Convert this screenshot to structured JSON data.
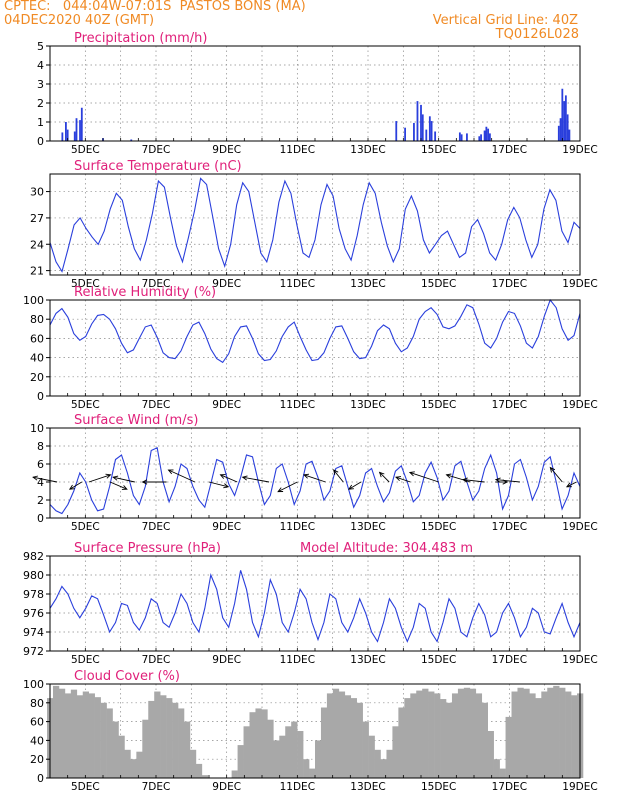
{
  "header": {
    "line1_left": "CPTEC:   044:04W-07:01S  PASTOS BONS (MA)",
    "line2_left": "04DEC2020 40Z (GMT)",
    "line1_right": "Vertical Grid Line: 40Z",
    "line2_right": "TQ0126L028"
  },
  "colors": {
    "header": "#f08a24",
    "panel_title": "#e0207a",
    "series": "#2a3fdc",
    "cloud": "#a8a8a8",
    "wind_arrow": "#000000"
  },
  "shared_x": {
    "tick_labels": [
      "5DEC",
      "7DEC",
      "9DEC",
      "11DEC",
      "13DEC",
      "15DEC",
      "17DEC",
      "19DEC"
    ],
    "days_span": 15
  },
  "chart_data": [
    {
      "type": "bar",
      "title": "Precipitation (mm/h)",
      "yticks": [
        "0",
        "1",
        "2",
        "3",
        "4",
        "5"
      ],
      "ylim": [
        0,
        5
      ],
      "events": [
        {
          "day": 0.35,
          "value": 0.45
        },
        {
          "day": 0.45,
          "value": 1.0
        },
        {
          "day": 0.5,
          "value": 0.6
        },
        {
          "day": 0.7,
          "value": 0.5
        },
        {
          "day": 0.75,
          "value": 1.2
        },
        {
          "day": 0.85,
          "value": 1.1
        },
        {
          "day": 0.9,
          "value": 1.75
        },
        {
          "day": 1.5,
          "value": 0.15
        },
        {
          "day": 2.3,
          "value": 0.08
        },
        {
          "day": 9.8,
          "value": 1.05
        },
        {
          "day": 10.05,
          "value": 0.7
        },
        {
          "day": 10.3,
          "value": 0.95
        },
        {
          "day": 10.4,
          "value": 2.1
        },
        {
          "day": 10.5,
          "value": 1.9
        },
        {
          "day": 10.55,
          "value": 1.4
        },
        {
          "day": 10.65,
          "value": 0.6
        },
        {
          "day": 10.75,
          "value": 1.3
        },
        {
          "day": 10.8,
          "value": 1.05
        },
        {
          "day": 10.9,
          "value": 0.5
        },
        {
          "day": 11.6,
          "value": 0.45
        },
        {
          "day": 11.65,
          "value": 0.35
        },
        {
          "day": 11.8,
          "value": 0.4
        },
        {
          "day": 12.15,
          "value": 0.25
        },
        {
          "day": 12.2,
          "value": 0.35
        },
        {
          "day": 12.3,
          "value": 0.55
        },
        {
          "day": 12.35,
          "value": 0.75
        },
        {
          "day": 12.4,
          "value": 0.65
        },
        {
          "day": 12.45,
          "value": 0.4
        },
        {
          "day": 14.4,
          "value": 0.8
        },
        {
          "day": 14.45,
          "value": 1.2
        },
        {
          "day": 14.5,
          "value": 2.75
        },
        {
          "day": 14.55,
          "value": 2.1
        },
        {
          "day": 14.6,
          "value": 2.4
        },
        {
          "day": 14.65,
          "value": 1.4
        },
        {
          "day": 14.7,
          "value": 0.6
        }
      ]
    },
    {
      "type": "line",
      "title": "Surface Temperature (nC)",
      "yticks": [
        "21",
        "24",
        "27",
        "30"
      ],
      "ylim": [
        20.5,
        32
      ],
      "values": [
        24.2,
        22.0,
        20.9,
        23.5,
        26.2,
        27.0,
        25.8,
        24.8,
        24.0,
        25.5,
        28.0,
        29.8,
        29.0,
        26.0,
        23.5,
        22.2,
        24.5,
        27.5,
        31.2,
        30.5,
        27.0,
        23.8,
        22.0,
        24.8,
        27.8,
        31.5,
        30.8,
        27.2,
        23.5,
        21.5,
        24.0,
        28.5,
        31.0,
        30.0,
        26.5,
        23.0,
        22.0,
        24.5,
        28.8,
        31.2,
        29.8,
        26.2,
        23.0,
        22.5,
        24.5,
        28.5,
        30.8,
        29.5,
        25.8,
        23.5,
        22.2,
        25.0,
        28.5,
        31.0,
        29.8,
        26.5,
        23.8,
        22.0,
        23.5,
        28.0,
        29.5,
        27.8,
        24.5,
        23.0,
        24.0,
        25.0,
        25.5,
        24.0,
        22.5,
        23.0,
        26.0,
        26.8,
        25.2,
        23.0,
        22.2,
        24.0,
        26.8,
        28.2,
        27.0,
        24.5,
        22.5,
        24.0,
        28.0,
        30.2,
        29.0,
        25.5,
        24.2,
        26.5,
        25.8
      ]
    },
    {
      "type": "line",
      "title": "Relative Humidity (%)",
      "yticks": [
        "0",
        "20",
        "40",
        "60",
        "80",
        "100"
      ],
      "ylim": [
        0,
        100
      ],
      "values": [
        74,
        86,
        91,
        82,
        65,
        58,
        62,
        75,
        84,
        85,
        80,
        70,
        55,
        45,
        48,
        60,
        72,
        74,
        61,
        45,
        40,
        39,
        47,
        62,
        74,
        77,
        65,
        49,
        39,
        35,
        44,
        62,
        72,
        73,
        60,
        44,
        37,
        38,
        47,
        62,
        72,
        77,
        62,
        48,
        37,
        38,
        45,
        60,
        72,
        73,
        60,
        46,
        39,
        40,
        52,
        68,
        74,
        70,
        55,
        46,
        50,
        62,
        80,
        88,
        92,
        85,
        72,
        70,
        73,
        83,
        95,
        92,
        75,
        55,
        50,
        60,
        77,
        88,
        86,
        73,
        55,
        50,
        62,
        83,
        100,
        92,
        70,
        58,
        63,
        86
      ]
    },
    {
      "type": "line",
      "title": "Surface Wind (m/s)",
      "yticks": [
        "0",
        "2",
        "4",
        "6",
        "8",
        "10"
      ],
      "ylim": [
        0,
        10
      ],
      "values": [
        1.5,
        0.8,
        0.5,
        1.5,
        3.0,
        5.0,
        4.0,
        2.0,
        0.8,
        1.0,
        3.5,
        6.5,
        7.0,
        5.0,
        2.5,
        1.5,
        3.5,
        7.5,
        7.8,
        4.0,
        1.8,
        3.5,
        6.0,
        5.5,
        3.5,
        2.0,
        1.2,
        3.8,
        6.5,
        6.2,
        3.8,
        2.5,
        4.5,
        7.0,
        6.8,
        4.0,
        1.5,
        2.5,
        5.5,
        6.0,
        4.0,
        1.5,
        3.0,
        6.0,
        6.3,
        4.5,
        2.0,
        3.0,
        5.5,
        5.8,
        3.5,
        1.2,
        2.5,
        5.0,
        5.5,
        3.5,
        1.8,
        2.8,
        5.2,
        5.8,
        4.0,
        1.8,
        2.5,
        5.0,
        6.2,
        4.5,
        2.0,
        3.0,
        5.8,
        6.3,
        4.0,
        2.0,
        3.0,
        5.5,
        7.0,
        5.0,
        1.0,
        2.5,
        6.0,
        6.5,
        4.5,
        2.0,
        3.5,
        6.2,
        6.8,
        4.0,
        1.0,
        2.5,
        5.0,
        3.5
      ],
      "vectors": [
        {
          "day": 0.2,
          "u": -1.0,
          "v": 0.2
        },
        {
          "day": 0.9,
          "u": -0.5,
          "v": -0.3
        },
        {
          "day": 1.1,
          "u": 0.9,
          "v": 0.3
        },
        {
          "day": 1.7,
          "u": 0.7,
          "v": -0.3
        },
        {
          "day": 2.4,
          "u": -0.9,
          "v": 0.2
        },
        {
          "day": 3.3,
          "u": -1.0,
          "v": 0.0
        },
        {
          "day": 4.1,
          "u": -1.1,
          "v": 0.5
        },
        {
          "day": 4.5,
          "u": 0.8,
          "v": -0.2
        },
        {
          "day": 5.3,
          "u": -0.7,
          "v": 0.3
        },
        {
          "day": 6.2,
          "u": -1.1,
          "v": 0.2
        },
        {
          "day": 7.0,
          "u": -0.8,
          "v": -0.4
        },
        {
          "day": 7.8,
          "u": -0.9,
          "v": 0.3
        },
        {
          "day": 8.3,
          "u": -0.4,
          "v": 0.5
        },
        {
          "day": 8.8,
          "u": -0.5,
          "v": -0.3
        },
        {
          "day": 9.6,
          "u": -0.4,
          "v": 0.4
        },
        {
          "day": 10.2,
          "u": -0.6,
          "v": 0.2
        },
        {
          "day": 11.0,
          "u": -1.2,
          "v": 0.4
        },
        {
          "day": 11.9,
          "u": -1.0,
          "v": 0.3
        },
        {
          "day": 12.3,
          "u": -0.9,
          "v": 0.1
        },
        {
          "day": 12.6,
          "u": 0.5,
          "v": 0.0
        },
        {
          "day": 13.3,
          "u": -1.0,
          "v": 0.1
        },
        {
          "day": 14.5,
          "u": -0.5,
          "v": 0.6
        },
        {
          "day": 14.9,
          "u": -0.4,
          "v": -0.2
        }
      ]
    },
    {
      "type": "line",
      "title": "Surface Pressure (hPa)",
      "subtitle": "Model Altitude: 304.483 m",
      "yticks": [
        "972",
        "974",
        "976",
        "978",
        "980",
        "982"
      ],
      "ylim": [
        972,
        982
      ],
      "values": [
        976.5,
        977.5,
        978.8,
        978.0,
        976.5,
        975.5,
        976.5,
        977.8,
        977.5,
        975.8,
        974.0,
        975.0,
        977.0,
        976.8,
        975.0,
        974.2,
        975.5,
        977.5,
        977.0,
        975.0,
        974.5,
        976.0,
        978.0,
        977.0,
        975.0,
        974.0,
        976.5,
        980.0,
        978.5,
        975.5,
        974.5,
        977.0,
        980.5,
        978.5,
        975.0,
        973.5,
        976.0,
        979.5,
        978.0,
        975.0,
        974.0,
        976.0,
        978.5,
        977.5,
        975.0,
        973.2,
        975.0,
        978.0,
        977.5,
        975.0,
        974.0,
        975.5,
        977.5,
        976.0,
        974.0,
        973.0,
        975.0,
        977.5,
        976.5,
        974.5,
        973.0,
        974.5,
        977.0,
        976.5,
        974.0,
        973.0,
        975.0,
        977.5,
        976.5,
        974.0,
        973.5,
        975.5,
        977.0,
        975.8,
        973.5,
        974.0,
        976.0,
        977.0,
        975.5,
        973.5,
        974.5,
        976.5,
        976.0,
        974.0,
        973.8,
        975.5,
        977.0,
        975.0,
        973.5,
        975.0
      ]
    },
    {
      "type": "area",
      "title": "Cloud Cover (%)",
      "yticks": [
        "0",
        "20",
        "40",
        "60",
        "80",
        "100"
      ],
      "ylim": [
        0,
        100
      ],
      "values": [
        85,
        98,
        95,
        90,
        94,
        88,
        92,
        90,
        86,
        80,
        74,
        60,
        45,
        30,
        20,
        28,
        62,
        82,
        92,
        88,
        85,
        80,
        74,
        60,
        30,
        15,
        3,
        0,
        0,
        0,
        0,
        8,
        35,
        55,
        70,
        74,
        73,
        62,
        40,
        45,
        55,
        60,
        50,
        20,
        10,
        40,
        75,
        90,
        95,
        92,
        88,
        85,
        80,
        60,
        45,
        30,
        20,
        30,
        55,
        75,
        85,
        90,
        93,
        95,
        92,
        90,
        84,
        80,
        90,
        95,
        96,
        95,
        90,
        80,
        50,
        20,
        10,
        65,
        92,
        96,
        95,
        90,
        85,
        92,
        96,
        98,
        96,
        92,
        88,
        90
      ]
    }
  ]
}
